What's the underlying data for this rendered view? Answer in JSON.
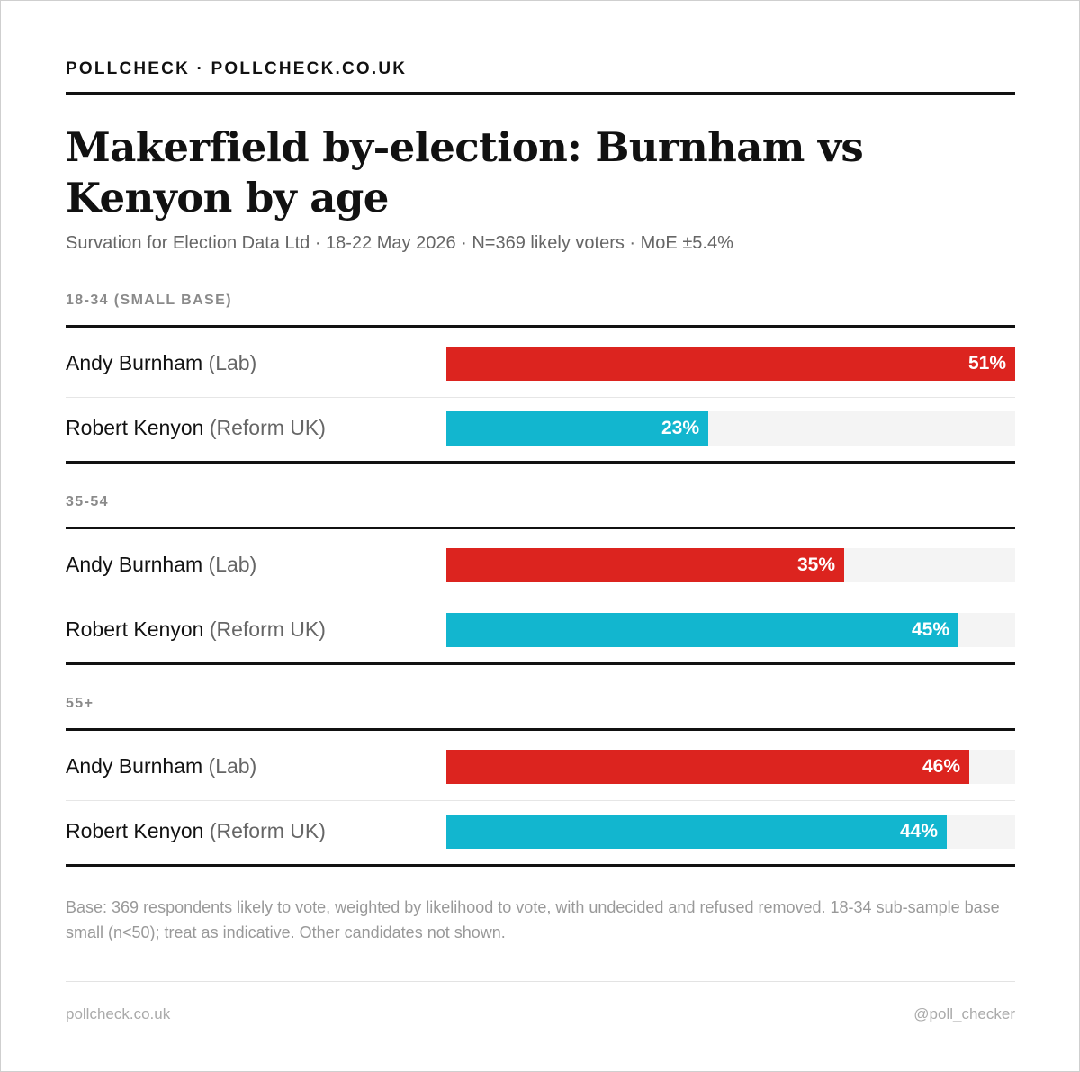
{
  "brand": "POLLCHECK · POLLCHECK.CO.UK",
  "title": "Makerfield by-election: Burnham vs Kenyon by age",
  "subtitle": "Survation for Election Data Ltd · 18-22 May 2026 · N=369 likely voters · MoE ±5.4%",
  "colors": {
    "Lab": "#dc241f",
    "Reform UK": "#12b6cf",
    "track": "#f4f4f4"
  },
  "chart_data": {
    "type": "bar",
    "orientation": "horizontal",
    "xlim": [
      0,
      100
    ],
    "groups": [
      {
        "label": "18-34 (SMALL BASE)",
        "rows": [
          {
            "name": "Andy Burnham",
            "party": "Lab",
            "party_label": "(Lab)",
            "value": 51,
            "value_label": "51%"
          },
          {
            "name": "Robert Kenyon",
            "party": "Reform UK",
            "party_label": "(Reform UK)",
            "value": 23,
            "value_label": "23%"
          }
        ]
      },
      {
        "label": "35-54",
        "rows": [
          {
            "name": "Andy Burnham",
            "party": "Lab",
            "party_label": "(Lab)",
            "value": 35,
            "value_label": "35%"
          },
          {
            "name": "Robert Kenyon",
            "party": "Reform UK",
            "party_label": "(Reform UK)",
            "value": 45,
            "value_label": "45%"
          }
        ]
      },
      {
        "label": "55+",
        "rows": [
          {
            "name": "Andy Burnham",
            "party": "Lab",
            "party_label": "(Lab)",
            "value": 46,
            "value_label": "46%"
          },
          {
            "name": "Robert Kenyon",
            "party": "Reform UK",
            "party_label": "(Reform UK)",
            "value": 44,
            "value_label": "44%"
          }
        ]
      }
    ]
  },
  "note": "Base: 369 respondents likely to vote, weighted by likelihood to vote, with undecided and refused removed. 18-34 sub-sample base small (n<50); treat as indicative. Other candidates not shown.",
  "footer": {
    "left": "pollcheck.co.uk",
    "right": "@poll_checker"
  }
}
